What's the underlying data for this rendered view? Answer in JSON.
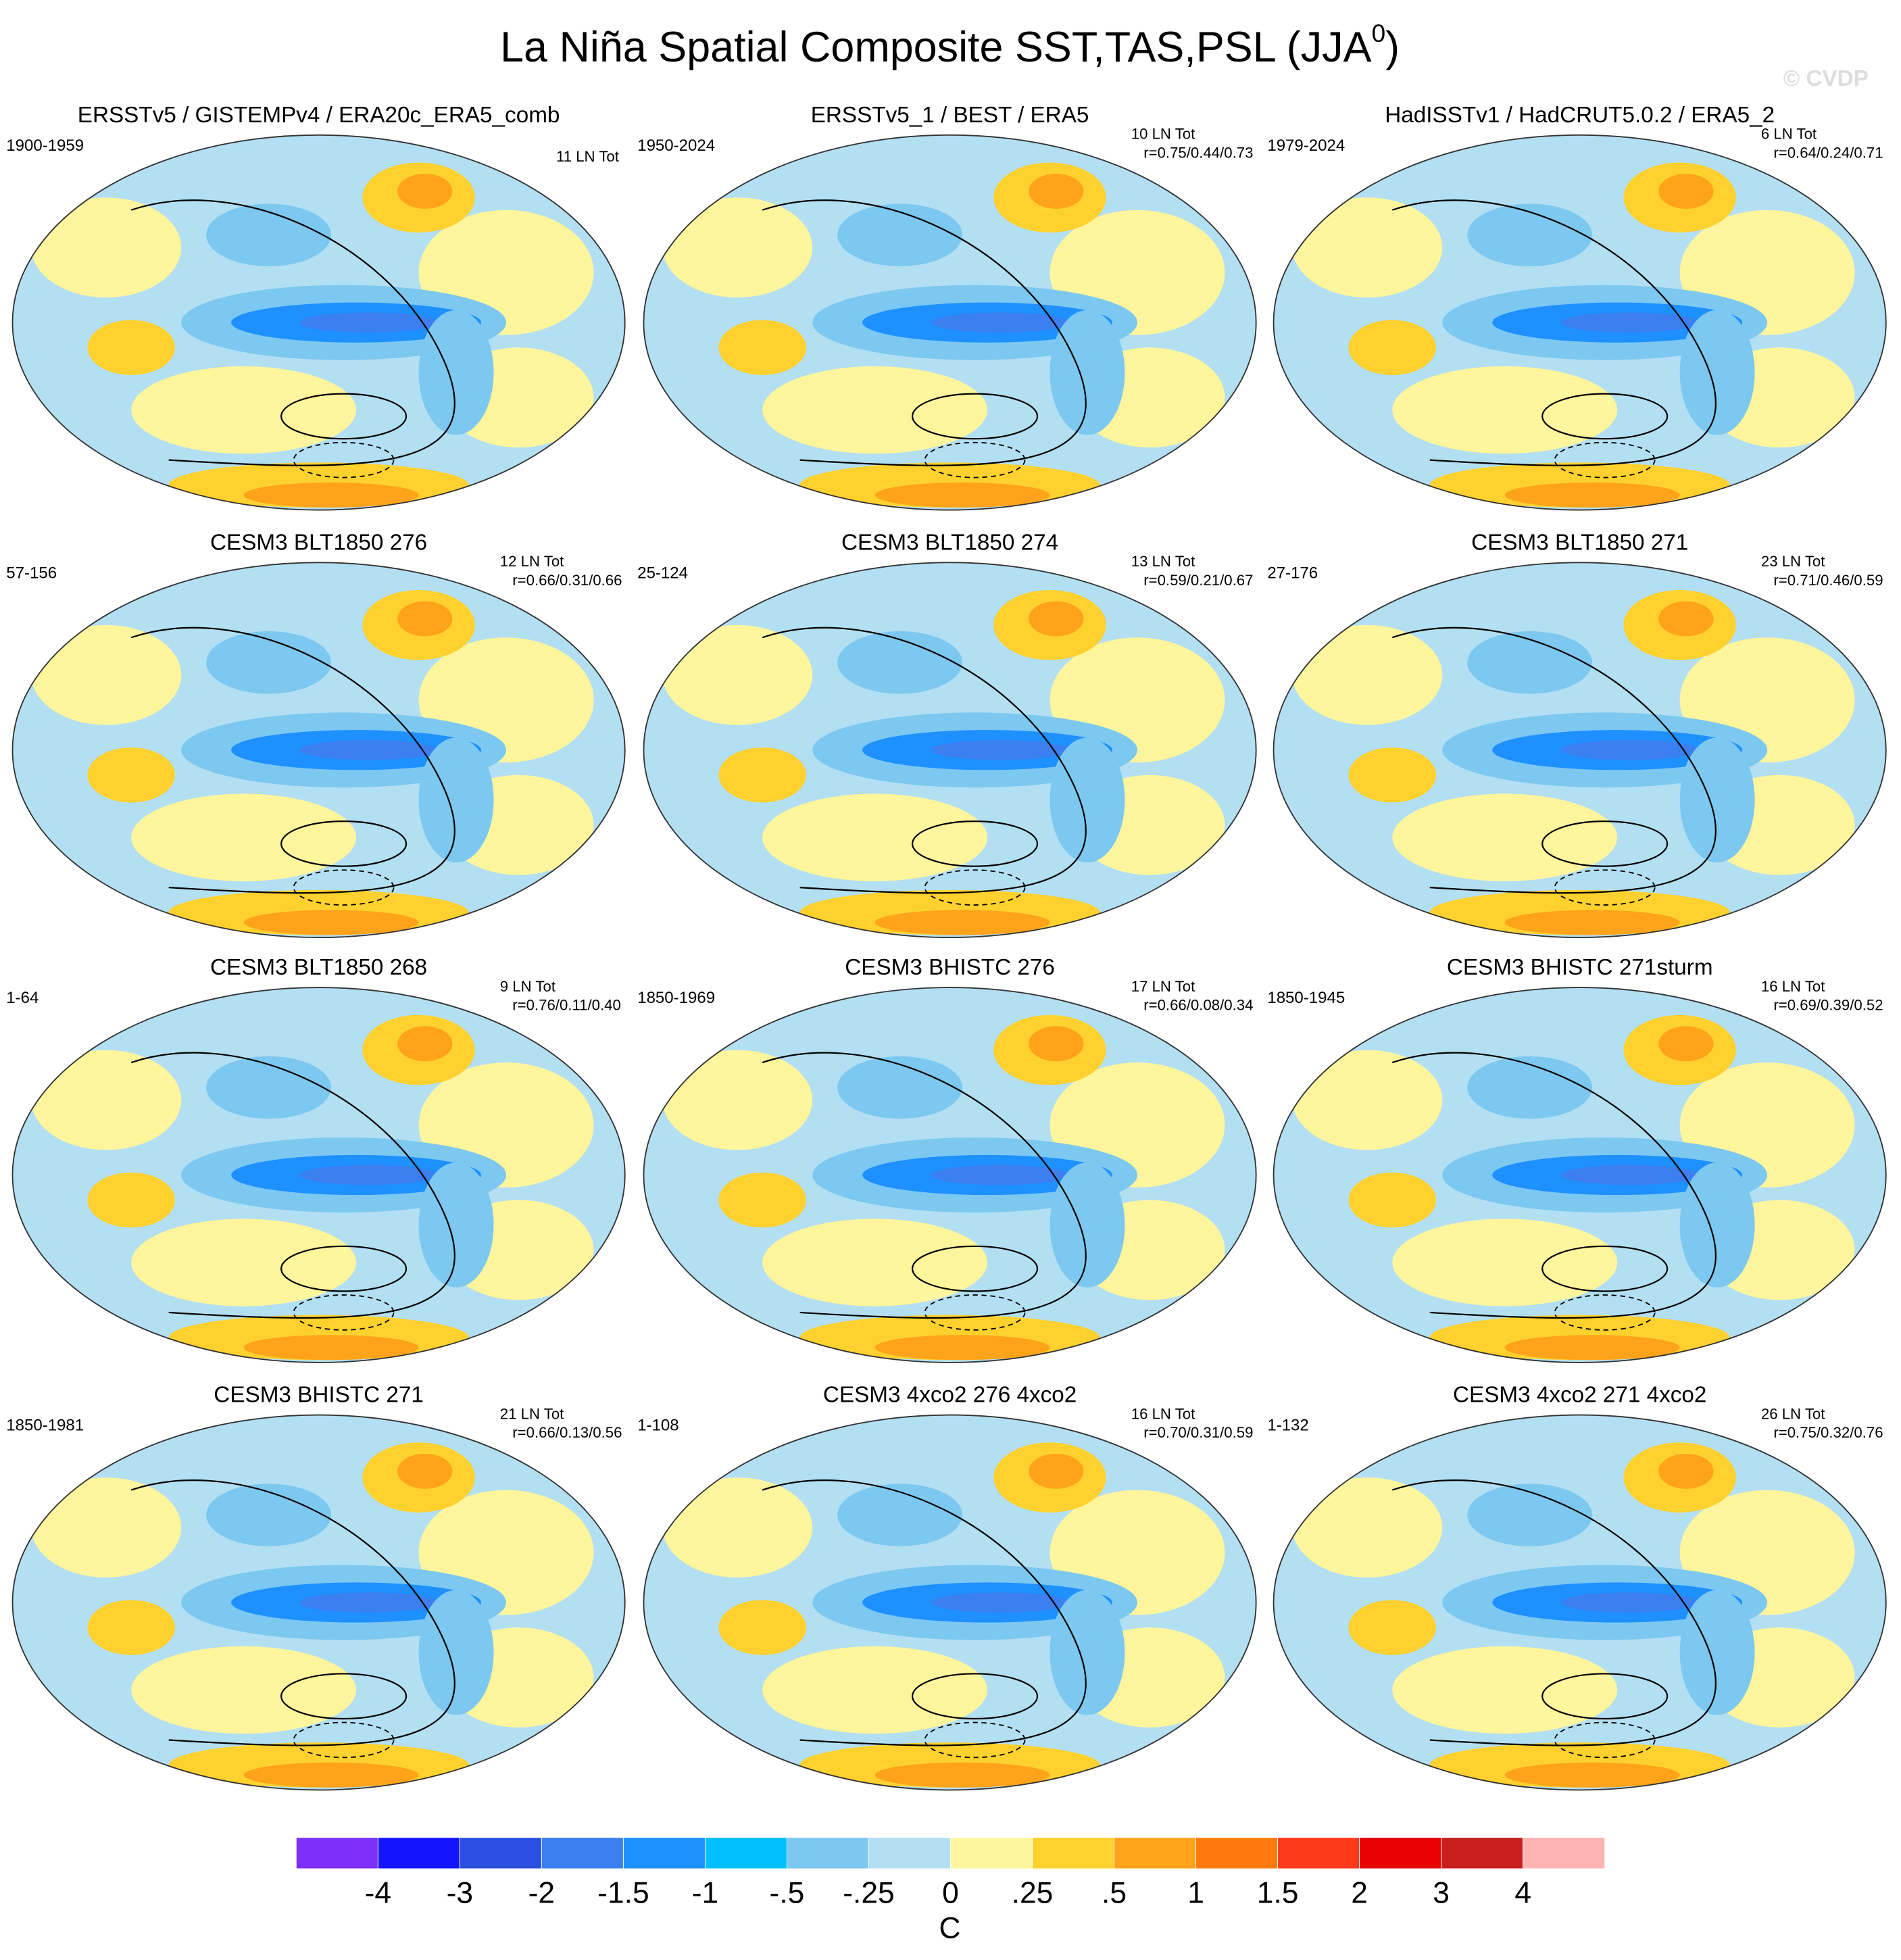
{
  "title": "La Niña Spatial Composite SST,TAS,PSL (JJA",
  "title_superscript": "0",
  "title_close": ")",
  "watermark": "© CVDP",
  "panels": [
    {
      "title": "ERSSTv5 / GISTEMPv4 / ERA20c_ERA5_comb",
      "period": "1900-1959",
      "count": "11 LN Tot"
    },
    {
      "title": "ERSSTv5_1 / BEST / ERA5",
      "period": "1950-2024",
      "count": "10 LN Tot",
      "r": "r=0.75/0.44/0.73"
    },
    {
      "title": "HadISSTv1 / HadCRUT5.0.2 / ERA5_2",
      "period": "1979-2024",
      "count": "6 LN Tot",
      "r": "r=0.64/0.24/0.71"
    },
    {
      "title": "CESM3 BLT1850 276",
      "period": "57-156",
      "count": "12 LN Tot",
      "r": "r=0.66/0.31/0.66"
    },
    {
      "title": "CESM3 BLT1850 274",
      "period": "25-124",
      "count": "13 LN Tot",
      "r": "r=0.59/0.21/0.67"
    },
    {
      "title": "CESM3 BLT1850 271",
      "period": "27-176",
      "count": "23 LN Tot",
      "r": "r=0.71/0.46/0.59"
    },
    {
      "title": "CESM3 BLT1850 268",
      "period": "1-64",
      "count": "9 LN Tot",
      "r": "r=0.76/0.11/0.40"
    },
    {
      "title": "CESM3 BHISTC 276",
      "period": "1850-1969",
      "count": "17 LN Tot",
      "r": "r=0.66/0.08/0.34"
    },
    {
      "title": "CESM3 BHISTC 271sturm",
      "period": "1850-1945",
      "count": "16 LN Tot",
      "r": "r=0.69/0.39/0.52"
    },
    {
      "title": "CESM3 BHISTC 271",
      "period": "1850-1981",
      "count": "21 LN Tot",
      "r": "r=0.66/0.13/0.56"
    },
    {
      "title": "CESM3 4xco2 276 4xco2",
      "period": "1-108",
      "count": "16 LN Tot",
      "r": "r=0.70/0.31/0.59"
    },
    {
      "title": "CESM3 4xco2 271 4xco2",
      "period": "1-132",
      "count": "26 LN Tot",
      "r": "r=0.75/0.32/0.76"
    }
  ],
  "colorbar": {
    "colors": [
      "#7b2ff7",
      "#1414ff",
      "#2a4ee0",
      "#3b7ff0",
      "#1e90ff",
      "#00bfff",
      "#7cc8f0",
      "#b3dff2",
      "#fff59d",
      "#ffd12e",
      "#ffa31a",
      "#ff7a0d",
      "#ff3a1a",
      "#e60000",
      "#c81e1e",
      "#ffb3b3"
    ],
    "labels": [
      "-4",
      "-3",
      "-2",
      "-1.5",
      "-1",
      "-.5",
      "-.25",
      "0",
      ".25",
      ".5",
      "1",
      "1.5",
      "2",
      "3",
      "4"
    ],
    "unit": "C"
  }
}
